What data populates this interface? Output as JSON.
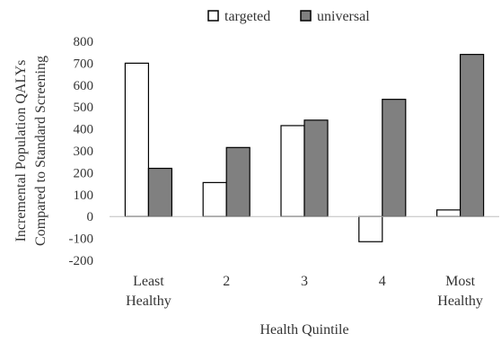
{
  "chart_data": {
    "type": "bar",
    "title": "",
    "xlabel": "Health Quintile",
    "ylabel_lines": [
      "Incremental Population QALYs",
      "Compared to Standard Screening"
    ],
    "categories": [
      [
        "Least",
        "Healthy"
      ],
      [
        "2"
      ],
      [
        "3"
      ],
      [
        "4"
      ],
      [
        "Most",
        "Healthy"
      ]
    ],
    "series": [
      {
        "name": "targeted",
        "values": [
          700,
          155,
          415,
          -115,
          30
        ],
        "fill": "#ffffff",
        "stroke": "#000000"
      },
      {
        "name": "universal",
        "values": [
          220,
          315,
          440,
          535,
          740
        ],
        "fill": "#808080",
        "stroke": "#000000"
      }
    ],
    "ylim": [
      -200,
      800
    ],
    "yticks": [
      -200,
      -100,
      0,
      100,
      200,
      300,
      400,
      500,
      600,
      700,
      800
    ],
    "grid": false,
    "legend_position": "top"
  }
}
